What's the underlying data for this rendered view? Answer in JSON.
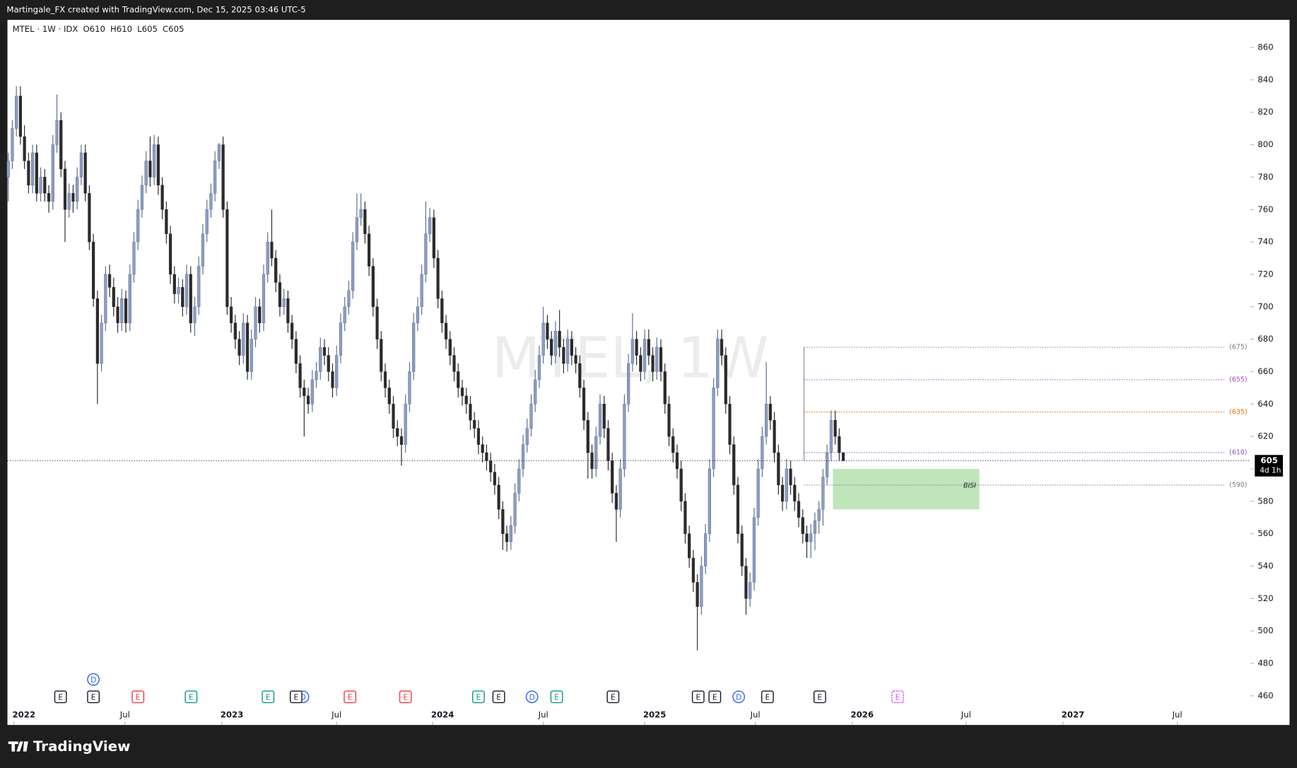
{
  "header": {
    "credit": "Martingale_FX created with TradingView.com, Dec 15, 2025 03:46 UTC-5",
    "brand": "TradingView"
  },
  "chart_data": {
    "type": "candlestick",
    "symbol": "MTEL · 1W · IDX",
    "ohlc_legend": [
      {
        "label": "O",
        "value": 610
      },
      {
        "label": "H",
        "value": 610
      },
      {
        "label": "L",
        "value": 605
      },
      {
        "label": "C",
        "value": 605
      }
    ],
    "watermark": "MTEL, 1W",
    "up_color": "#8c9dc0",
    "down_color": "#2b2b2b",
    "candles": [
      [
        780,
        795,
        765,
        790
      ],
      [
        790,
        815,
        785,
        810
      ],
      [
        810,
        836,
        805,
        830
      ],
      [
        830,
        836,
        800,
        805
      ],
      [
        805,
        812,
        785,
        790
      ],
      [
        790,
        795,
        770,
        775
      ],
      [
        775,
        800,
        770,
        795
      ],
      [
        795,
        800,
        765,
        770
      ],
      [
        770,
        786,
        765,
        780
      ],
      [
        780,
        785,
        765,
        770
      ],
      [
        770,
        775,
        758,
        765
      ],
      [
        765,
        806,
        760,
        800
      ],
      [
        800,
        831,
        795,
        815
      ],
      [
        815,
        820,
        780,
        785
      ],
      [
        785,
        790,
        740,
        760
      ],
      [
        760,
        776,
        755,
        770
      ],
      [
        770,
        775,
        758,
        765
      ],
      [
        765,
        786,
        760,
        780
      ],
      [
        780,
        800,
        775,
        795
      ],
      [
        795,
        800,
        765,
        770
      ],
      [
        770,
        775,
        735,
        740
      ],
      [
        740,
        745,
        700,
        705
      ],
      [
        705,
        710,
        640,
        665
      ],
      [
        665,
        695,
        660,
        690
      ],
      [
        690,
        725,
        685,
        720
      ],
      [
        720,
        726,
        706,
        712
      ],
      [
        712,
        718,
        694,
        700
      ],
      [
        700,
        706,
        684,
        690
      ],
      [
        690,
        711,
        685,
        705
      ],
      [
        705,
        710,
        684,
        690
      ],
      [
        690,
        726,
        685,
        720
      ],
      [
        720,
        746,
        715,
        740
      ],
      [
        740,
        766,
        735,
        760
      ],
      [
        760,
        781,
        755,
        775
      ],
      [
        775,
        796,
        770,
        790
      ],
      [
        790,
        805,
        774,
        780
      ],
      [
        780,
        806,
        775,
        800
      ],
      [
        800,
        805,
        769,
        775
      ],
      [
        775,
        780,
        754,
        760
      ],
      [
        760,
        765,
        739,
        745
      ],
      [
        745,
        750,
        714,
        720
      ],
      [
        720,
        725,
        702,
        708
      ],
      [
        708,
        718,
        702,
        712
      ],
      [
        712,
        717,
        694,
        700
      ],
      [
        700,
        726,
        695,
        720
      ],
      [
        720,
        725,
        684,
        690
      ],
      [
        690,
        706,
        682,
        700
      ],
      [
        700,
        731,
        695,
        725
      ],
      [
        725,
        751,
        720,
        745
      ],
      [
        745,
        766,
        740,
        760
      ],
      [
        760,
        776,
        755,
        770
      ],
      [
        770,
        796,
        765,
        790
      ],
      [
        790,
        801,
        785,
        800
      ],
      [
        800,
        805,
        755,
        760
      ],
      [
        760,
        765,
        695,
        700
      ],
      [
        700,
        706,
        684,
        690
      ],
      [
        690,
        695,
        674,
        680
      ],
      [
        680,
        685,
        664,
        670
      ],
      [
        670,
        696,
        665,
        690
      ],
      [
        690,
        695,
        655,
        660
      ],
      [
        660,
        686,
        655,
        680
      ],
      [
        680,
        706,
        675,
        700
      ],
      [
        700,
        705,
        684,
        690
      ],
      [
        690,
        726,
        685,
        720
      ],
      [
        720,
        746,
        715,
        740
      ],
      [
        740,
        760,
        725,
        730
      ],
      [
        730,
        735,
        709,
        715
      ],
      [
        715,
        720,
        694,
        700
      ],
      [
        700,
        711,
        695,
        705
      ],
      [
        705,
        710,
        684,
        690
      ],
      [
        690,
        695,
        674,
        680
      ],
      [
        680,
        685,
        659,
        665
      ],
      [
        665,
        670,
        644,
        650
      ],
      [
        650,
        655,
        620,
        645
      ],
      [
        645,
        650,
        634,
        640
      ],
      [
        640,
        661,
        635,
        655
      ],
      [
        655,
        666,
        650,
        660
      ],
      [
        660,
        681,
        655,
        675
      ],
      [
        675,
        680,
        664,
        670
      ],
      [
        670,
        675,
        654,
        660
      ],
      [
        660,
        665,
        644,
        650
      ],
      [
        650,
        676,
        645,
        670
      ],
      [
        670,
        696,
        665,
        690
      ],
      [
        690,
        706,
        685,
        700
      ],
      [
        700,
        716,
        695,
        710
      ],
      [
        710,
        746,
        705,
        740
      ],
      [
        740,
        770,
        735,
        755
      ],
      [
        755,
        770,
        750,
        760
      ],
      [
        760,
        765,
        739,
        745
      ],
      [
        745,
        750,
        719,
        725
      ],
      [
        725,
        730,
        694,
        700
      ],
      [
        700,
        705,
        674,
        680
      ],
      [
        680,
        685,
        654,
        660
      ],
      [
        660,
        665,
        644,
        650
      ],
      [
        650,
        655,
        634,
        640
      ],
      [
        640,
        645,
        619,
        625
      ],
      [
        625,
        630,
        614,
        620
      ],
      [
        620,
        625,
        602,
        615
      ],
      [
        615,
        646,
        610,
        640
      ],
      [
        640,
        666,
        635,
        660
      ],
      [
        660,
        696,
        655,
        690
      ],
      [
        690,
        706,
        685,
        700
      ],
      [
        700,
        726,
        695,
        720
      ],
      [
        720,
        765,
        715,
        745
      ],
      [
        745,
        761,
        740,
        755
      ],
      [
        755,
        760,
        724,
        730
      ],
      [
        730,
        735,
        699,
        705
      ],
      [
        705,
        710,
        684,
        690
      ],
      [
        690,
        695,
        674,
        680
      ],
      [
        680,
        685,
        664,
        670
      ],
      [
        670,
        675,
        654,
        660
      ],
      [
        660,
        665,
        644,
        650
      ],
      [
        650,
        655,
        639,
        645
      ],
      [
        645,
        650,
        634,
        640
      ],
      [
        640,
        645,
        624,
        630
      ],
      [
        630,
        635,
        619,
        625
      ],
      [
        625,
        630,
        609,
        615
      ],
      [
        615,
        620,
        604,
        610
      ],
      [
        610,
        615,
        599,
        605
      ],
      [
        605,
        610,
        592,
        598
      ],
      [
        598,
        603,
        584,
        590
      ],
      [
        590,
        595,
        569,
        575
      ],
      [
        575,
        580,
        550,
        560
      ],
      [
        560,
        565,
        549,
        555
      ],
      [
        555,
        571,
        550,
        565
      ],
      [
        565,
        591,
        560,
        585
      ],
      [
        585,
        606,
        580,
        600
      ],
      [
        600,
        621,
        595,
        615
      ],
      [
        615,
        631,
        610,
        625
      ],
      [
        625,
        646,
        620,
        640
      ],
      [
        640,
        661,
        635,
        655
      ],
      [
        655,
        676,
        650,
        670
      ],
      [
        670,
        700,
        665,
        690
      ],
      [
        690,
        695,
        674,
        680
      ],
      [
        680,
        685,
        664,
        670
      ],
      [
        670,
        691,
        665,
        685
      ],
      [
        685,
        698,
        669,
        675
      ],
      [
        675,
        680,
        659,
        665
      ],
      [
        665,
        686,
        660,
        680
      ],
      [
        680,
        685,
        664,
        670
      ],
      [
        670,
        675,
        659,
        665
      ],
      [
        665,
        670,
        644,
        650
      ],
      [
        650,
        655,
        624,
        630
      ],
      [
        630,
        635,
        594,
        610
      ],
      [
        610,
        615,
        594,
        600
      ],
      [
        600,
        626,
        595,
        620
      ],
      [
        620,
        646,
        615,
        640
      ],
      [
        640,
        645,
        619,
        625
      ],
      [
        625,
        630,
        599,
        605
      ],
      [
        605,
        610,
        579,
        585
      ],
      [
        585,
        590,
        555,
        575
      ],
      [
        575,
        606,
        570,
        600
      ],
      [
        600,
        646,
        595,
        640
      ],
      [
        640,
        671,
        635,
        665
      ],
      [
        665,
        696,
        660,
        680
      ],
      [
        680,
        685,
        664,
        670
      ],
      [
        670,
        675,
        654,
        660
      ],
      [
        660,
        686,
        655,
        680
      ],
      [
        680,
        686,
        664,
        670
      ],
      [
        670,
        675,
        654,
        660
      ],
      [
        660,
        681,
        655,
        675
      ],
      [
        675,
        680,
        654,
        660
      ],
      [
        660,
        665,
        634,
        640
      ],
      [
        640,
        645,
        614,
        620
      ],
      [
        620,
        625,
        604,
        610
      ],
      [
        610,
        615,
        594,
        600
      ],
      [
        600,
        605,
        574,
        580
      ],
      [
        580,
        585,
        554,
        560
      ],
      [
        560,
        565,
        539,
        545
      ],
      [
        545,
        550,
        524,
        530
      ],
      [
        530,
        535,
        488,
        515
      ],
      [
        515,
        546,
        510,
        540
      ],
      [
        540,
        566,
        535,
        560
      ],
      [
        560,
        606,
        555,
        600
      ],
      [
        600,
        656,
        595,
        650
      ],
      [
        650,
        686,
        645,
        680
      ],
      [
        680,
        686,
        664,
        670
      ],
      [
        670,
        675,
        634,
        640
      ],
      [
        640,
        645,
        609,
        615
      ],
      [
        615,
        620,
        584,
        590
      ],
      [
        590,
        595,
        554,
        560
      ],
      [
        560,
        565,
        534,
        540
      ],
      [
        540,
        545,
        510,
        520
      ],
      [
        520,
        536,
        515,
        530
      ],
      [
        530,
        576,
        525,
        570
      ],
      [
        570,
        606,
        565,
        600
      ],
      [
        600,
        626,
        595,
        620
      ],
      [
        620,
        666,
        615,
        640
      ],
      [
        640,
        645,
        624,
        630
      ],
      [
        630,
        635,
        604,
        610
      ],
      [
        610,
        615,
        584,
        590
      ],
      [
        590,
        595,
        574,
        580
      ],
      [
        580,
        606,
        575,
        600
      ],
      [
        600,
        605,
        584,
        590
      ],
      [
        590,
        595,
        574,
        580
      ],
      [
        580,
        585,
        564,
        570
      ],
      [
        570,
        575,
        554,
        560
      ],
      [
        560,
        565,
        545,
        555
      ],
      [
        555,
        566,
        545,
        560
      ],
      [
        560,
        573,
        550,
        568
      ],
      [
        568,
        580,
        560,
        575
      ],
      [
        575,
        600,
        565,
        595
      ],
      [
        595,
        615,
        590,
        610
      ],
      [
        610,
        636,
        605,
        630
      ],
      [
        630,
        636,
        615,
        620
      ],
      [
        620,
        625,
        605,
        610
      ],
      [
        610,
        610,
        605,
        605
      ]
    ],
    "ylim": [
      442,
      877
    ],
    "yticks": [
      460,
      480,
      500,
      520,
      540,
      560,
      580,
      600,
      620,
      640,
      660,
      680,
      700,
      720,
      740,
      760,
      780,
      800,
      820,
      840,
      860
    ],
    "xlim": [
      -0.2,
      306.5
    ],
    "xticks": [
      {
        "value": 1.4,
        "label": "2022"
      },
      {
        "value": 28.8,
        "label": "Jul"
      },
      {
        "value": 52.7,
        "label": "2023"
      },
      {
        "value": 81,
        "label": "Jul"
      },
      {
        "value": 104.7,
        "label": "2024"
      },
      {
        "value": 132,
        "label": "Jul"
      },
      {
        "value": 157,
        "label": "2025"
      },
      {
        "value": 184.3,
        "label": "Jul"
      },
      {
        "value": 208.2,
        "label": "2026"
      },
      {
        "value": 236.3,
        "label": "Jul"
      },
      {
        "value": 260.2,
        "label": "2027"
      },
      {
        "value": 288.4,
        "label": "Jul"
      }
    ],
    "levels": [
      {
        "value": 675,
        "label": "(675)",
        "color": "#787b86"
      },
      {
        "value": 655,
        "label": "(655)",
        "color": "#ab47bc"
      },
      {
        "value": 635,
        "label": "(635)",
        "color": "#ef6c00"
      },
      {
        "value": 610,
        "label": "(610)",
        "color": "#7e57c2"
      },
      {
        "value": 590,
        "label": "(590)",
        "color": "#787b86"
      }
    ],
    "zone": {
      "low": 575,
      "high": 600,
      "label": "BISI",
      "color": "#b9e2b4"
    },
    "last_price": {
      "value": 605,
      "countdown": "4d 1h"
    },
    "events": [
      {
        "label": "E",
        "index": 12.9,
        "color": "#131722"
      },
      {
        "label": "E",
        "index": 21,
        "color": "#131722"
      },
      {
        "label": "D",
        "index": 21,
        "color": "#2962ff"
      },
      {
        "label": "E",
        "index": 32,
        "color": "#f23645"
      },
      {
        "label": "E",
        "index": 45.1,
        "color": "#089981"
      },
      {
        "label": "E",
        "index": 64.1,
        "color": "#089981"
      },
      {
        "label": "D",
        "index": 72.7,
        "color": "#2962ff"
      },
      {
        "label": "E",
        "index": 71,
        "color": "#131722"
      },
      {
        "label": "E",
        "index": 84.3,
        "color": "#f23645"
      },
      {
        "label": "E",
        "index": 98,
        "color": "#f23645"
      },
      {
        "label": "E",
        "index": 116,
        "color": "#089981"
      },
      {
        "label": "E",
        "index": 121,
        "color": "#131722"
      },
      {
        "label": "D",
        "index": 129.2,
        "color": "#2962ff"
      },
      {
        "label": "E",
        "index": 135.3,
        "color": "#089981"
      },
      {
        "label": "E",
        "index": 149.2,
        "color": "#131722"
      },
      {
        "label": "E",
        "index": 170.2,
        "color": "#131722"
      },
      {
        "label": "E",
        "index": 174.3,
        "color": "#131722"
      },
      {
        "label": "D",
        "index": 180.2,
        "color": "#2962ff"
      },
      {
        "label": "E",
        "index": 187.3,
        "color": "#131722"
      },
      {
        "label": "E",
        "index": 200.2,
        "color": "#131722"
      },
      {
        "label": "E",
        "index": 219.4,
        "color": "#e040fb"
      }
    ]
  }
}
